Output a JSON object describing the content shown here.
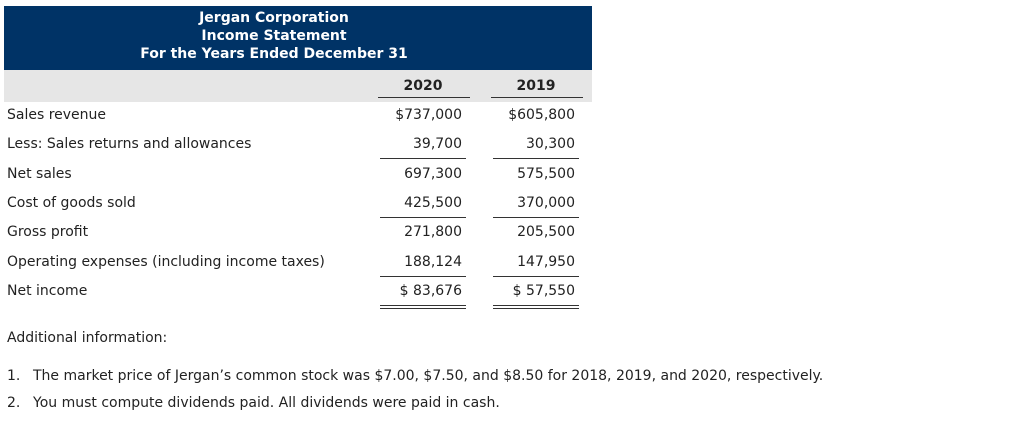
{
  "header": {
    "title": "Jergan Corporation",
    "subtitle": "Income Statement",
    "period": "For the Years Ended December 31"
  },
  "table": {
    "columns": [
      "2020",
      "2019"
    ],
    "rows": [
      [
        "Sales revenue",
        "$737,000",
        "$605,800"
      ],
      [
        "Less: Sales returns and allowances",
        "39,700",
        "30,300"
      ],
      [
        "Net sales",
        "697,300",
        "575,500"
      ],
      [
        "Cost of goods sold",
        "425,500",
        "370,000"
      ],
      [
        "Gross profit",
        "271,800",
        "205,500"
      ],
      [
        "Operating expenses (including income taxes)",
        "188,124",
        "147,950"
      ],
      [
        "Net income",
        "$ 83,676",
        "$ 57,550"
      ]
    ]
  },
  "additional": {
    "heading": "Additional information:",
    "items": [
      {
        "number": "1.",
        "text": "The market price of Jergan’s common stock was $7.00, $7.50, and $8.50 for 2018, 2019, and 2020, respectively."
      },
      {
        "number": "2.",
        "text": "You must compute dividends paid. All dividends were paid in cash."
      }
    ]
  }
}
